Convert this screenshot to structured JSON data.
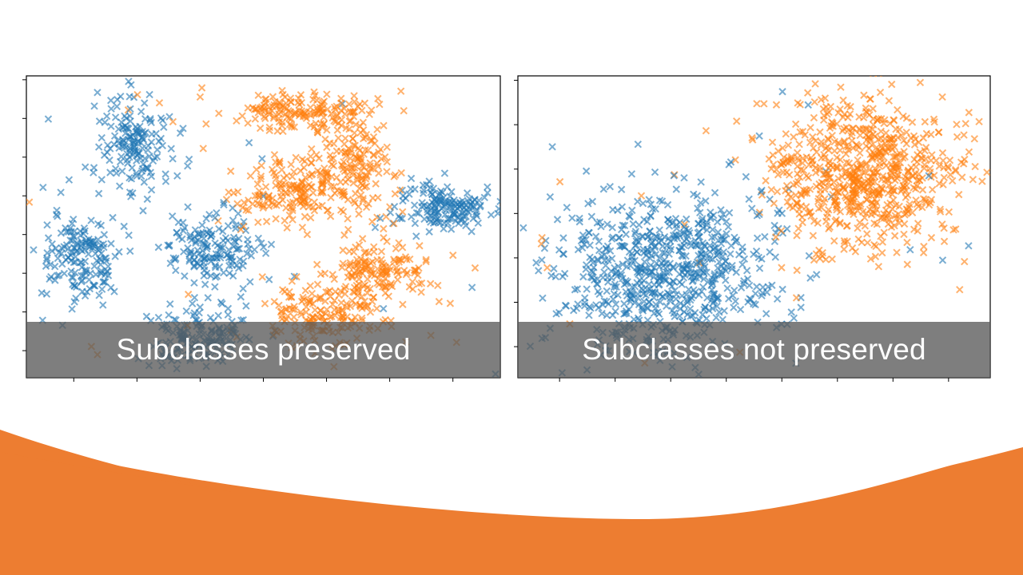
{
  "slide": {
    "accent_color": "#ED7D31",
    "background": "#ffffff"
  },
  "chart_data": [
    {
      "type": "scatter",
      "title": "",
      "xlabel": "",
      "ylabel": "",
      "xlim": [
        0,
        100
      ],
      "ylim": [
        0,
        100
      ],
      "grid": false,
      "legend": "none",
      "xtick_labels": [
        "",
        "",
        "",
        "",
        "",
        "",
        ""
      ],
      "ytick_labels": [
        "",
        "",
        "",
        "",
        "",
        "",
        "",
        ""
      ],
      "marker": "x",
      "caption": "Subclasses preserved",
      "series": [
        {
          "color": "#1F77B4",
          "clusters": [
            {
              "cx": 23,
              "cy": 78,
              "sx": 4.0,
              "sy": 9.0
            },
            {
              "cx": 11,
              "cy": 39,
              "sx": 4.0,
              "sy": 7.0
            },
            {
              "cx": 39,
              "cy": 43,
              "sx": 5.0,
              "sy": 6.0
            },
            {
              "cx": 36,
              "cy": 14,
              "sx": 5.0,
              "sy": 5.0
            },
            {
              "cx": 88,
              "cy": 56,
              "sx": 5.0,
              "sy": 4.0
            }
          ]
        },
        {
          "color": "#FF7F0E",
          "clusters": [
            {
              "cx": 58,
              "cy": 88,
              "sx": 7.5,
              "sy": 3.5
            },
            {
              "cx": 70,
              "cy": 69,
              "sx": 4.5,
              "sy": 7.5
            },
            {
              "cx": 55,
              "cy": 62,
              "sx": 5.5,
              "sy": 5.0
            },
            {
              "cx": 74,
              "cy": 35,
              "sx": 6.0,
              "sy": 5.0
            },
            {
              "cx": 61,
              "cy": 21,
              "sx": 6.0,
              "sy": 5.5
            }
          ]
        }
      ]
    },
    {
      "type": "scatter",
      "title": "",
      "xlabel": "",
      "ylabel": "",
      "xlim": [
        0,
        100
      ],
      "ylim": [
        0,
        100
      ],
      "grid": false,
      "legend": "none",
      "xtick_labels": [
        "",
        "",
        "",
        "",
        "",
        "",
        "",
        ""
      ],
      "ytick_labels": [
        "",
        "",
        "",
        "",
        "",
        "",
        ""
      ],
      "marker": "x",
      "caption": "Subclasses not preserved",
      "series": [
        {
          "color": "#1F77B4",
          "clusters": [
            {
              "cx": 31,
              "cy": 35,
              "sx": 12.0,
              "sy": 13.0
            }
          ]
        },
        {
          "color": "#FF7F0E",
          "clusters": [
            {
              "cx": 73,
              "cy": 68,
              "sx": 10.5,
              "sy": 12.0
            }
          ]
        }
      ]
    }
  ]
}
